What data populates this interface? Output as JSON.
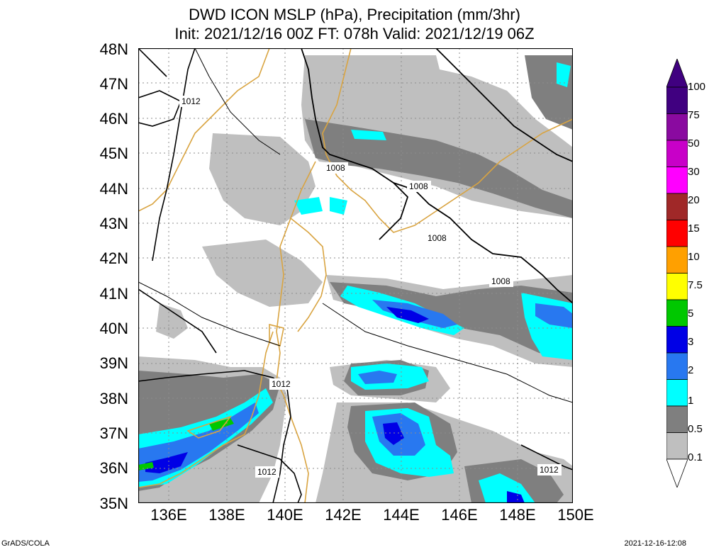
{
  "title_line1": "DWD ICON MSLP (hPa), Precipitation (mm/3hr)",
  "title_line2": "Init: 2021/12/16 00Z  FT: 078h  Valid: 2021/12/19 06Z",
  "lat_labels": [
    "48N",
    "47N",
    "46N",
    "45N",
    "44N",
    "43N",
    "42N",
    "41N",
    "40N",
    "39N",
    "38N",
    "37N",
    "36N",
    "35N"
  ],
  "lon_labels": [
    "136E",
    "138E",
    "140E",
    "142E",
    "144E",
    "146E",
    "148E",
    "150E"
  ],
  "isobar_labels": [
    "1012",
    "1008",
    "1008",
    "1008",
    "1008",
    "1012",
    "1012",
    "1012"
  ],
  "colorbar": {
    "levels": [
      "100",
      "75",
      "50",
      "30",
      "20",
      "15",
      "10",
      "7.5",
      "5",
      "3",
      "2",
      "1",
      "0.5",
      "0.1"
    ],
    "colors": [
      "#400080",
      "#8a0aa0",
      "#c800c8",
      "#ff00ff",
      "#a02828",
      "#ff0000",
      "#ffa000",
      "#ffff00",
      "#00c800",
      "#0000e6",
      "#2878f0",
      "#00ffff",
      "#7f7f7f",
      "#bfbfbf"
    ],
    "bottom_color": "#ffffff"
  },
  "footer_left": "GrADS/COLA",
  "footer_right": "2021-12-16-12:08",
  "colors": {
    "coast": "#d9a441",
    "isobar": "#000000",
    "grid": "#8c8c8c"
  }
}
